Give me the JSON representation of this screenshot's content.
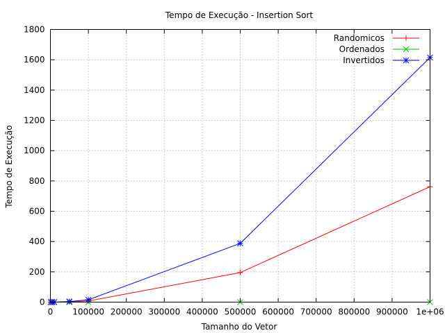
{
  "chart_data": {
    "type": "line",
    "title": "Tempo de Execução - Insertion Sort",
    "xlabel": "Tamanho do Vetor",
    "ylabel": "Tempo de Execução",
    "xlim": [
      0,
      1000000
    ],
    "ylim": [
      0,
      1800
    ],
    "x_ticks": [
      0,
      100000,
      200000,
      300000,
      400000,
      500000,
      600000,
      700000,
      800000,
      900000,
      1000000
    ],
    "x_tick_labels": [
      "0",
      "100000",
      "200000",
      "300000",
      "400000",
      "500000",
      "600000",
      "700000",
      "800000",
      "900000",
      "1e+06"
    ],
    "y_ticks": [
      0,
      200,
      400,
      600,
      800,
      1000,
      1200,
      1400,
      1600,
      1800
    ],
    "y_tick_labels": [
      "0",
      "200",
      "400",
      "600",
      "800",
      "1000",
      "1200",
      "1400",
      "1600",
      "1800"
    ],
    "grid": true,
    "legend_position": "top-right",
    "x": [
      1000,
      5000,
      10000,
      50000,
      100000,
      500000,
      1000000
    ],
    "series": [
      {
        "name": "Randomicos",
        "color": "#ff0000",
        "marker": "plus",
        "values": [
          0,
          0.1,
          0.2,
          1.9,
          7.5,
          195,
          762
        ]
      },
      {
        "name": "Ordenados",
        "color": "#00c000",
        "marker": "cross",
        "values": [
          0,
          0,
          0,
          0,
          0,
          0,
          0
        ]
      },
      {
        "name": "Invertidos",
        "color": "#0000ff",
        "marker": "star",
        "values": [
          0,
          0.2,
          0.3,
          3.9,
          15.5,
          388,
          1615
        ]
      }
    ]
  }
}
